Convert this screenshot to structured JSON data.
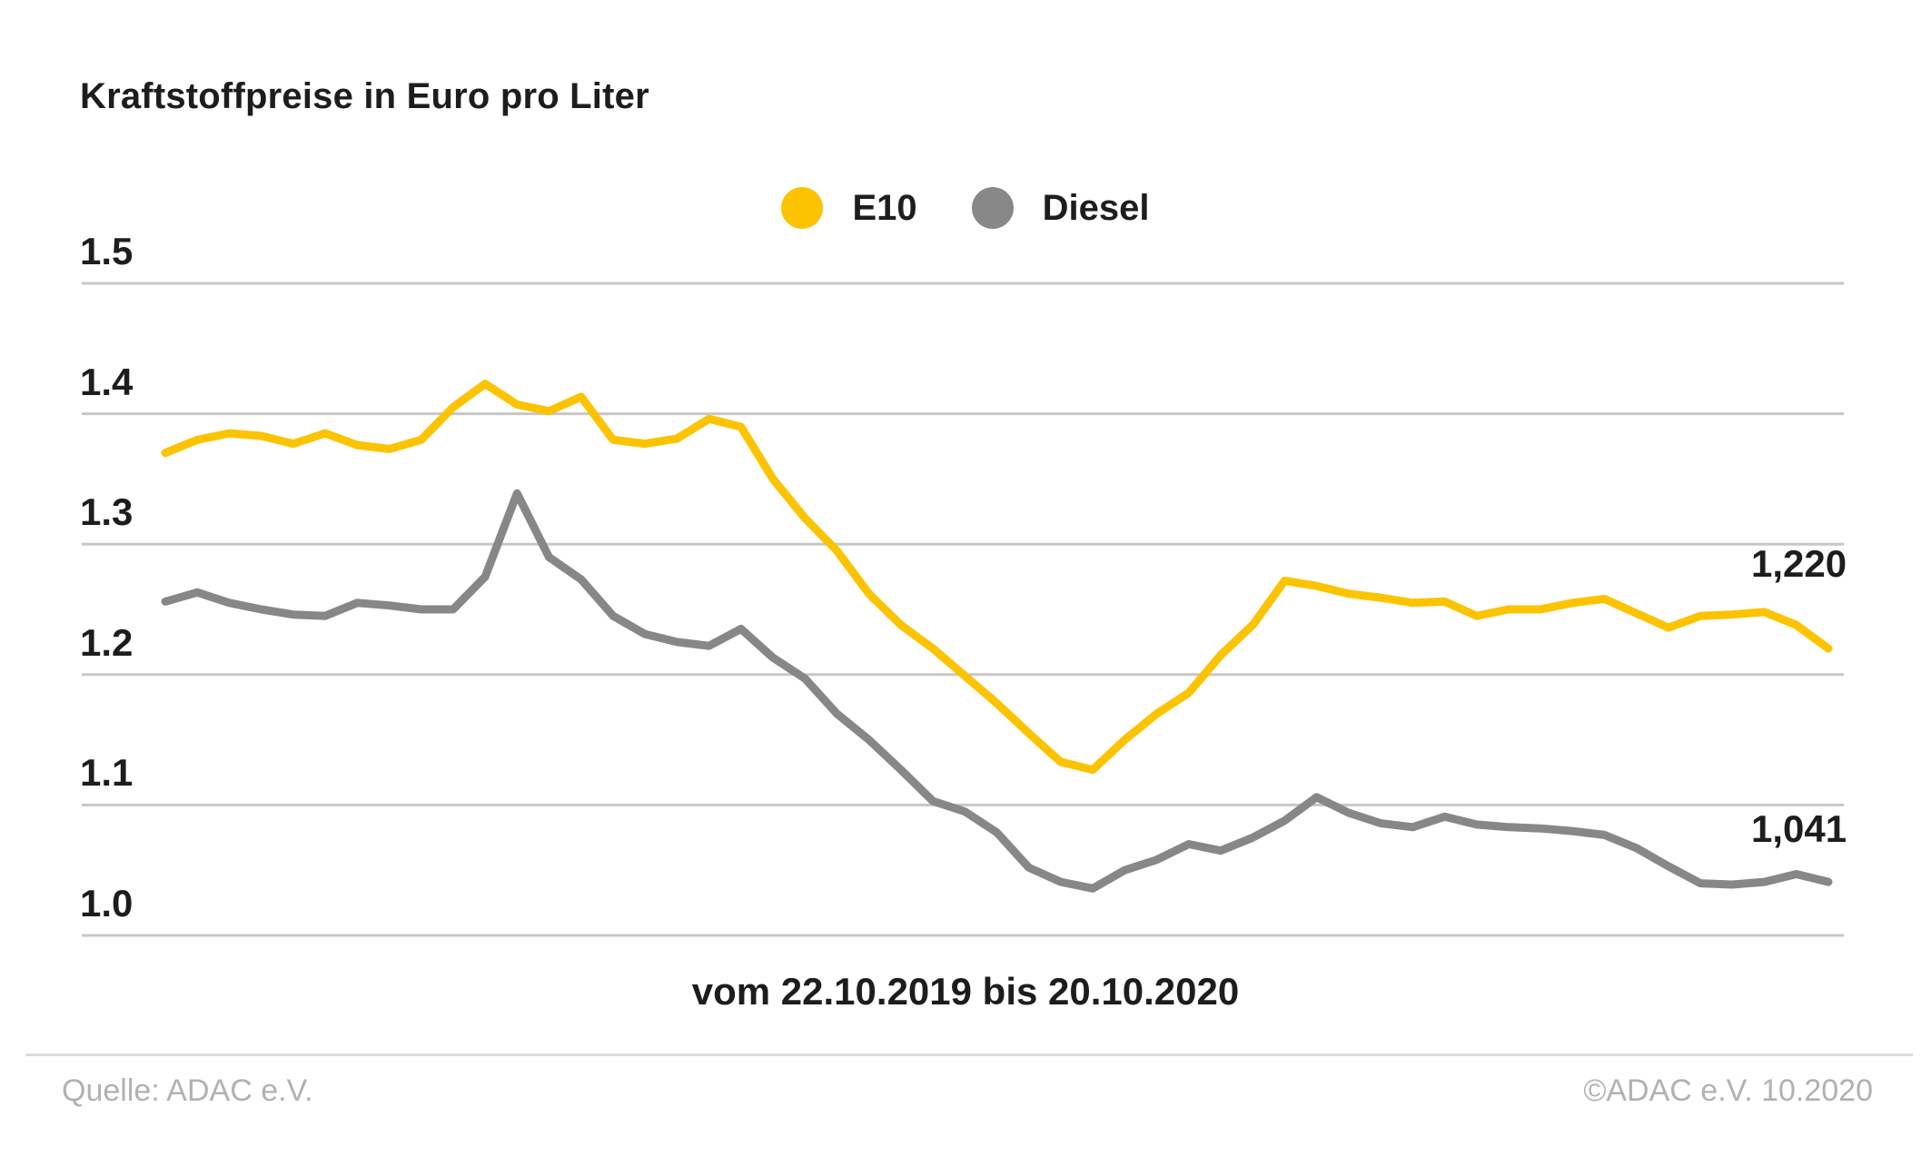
{
  "title": "Kraftstoffpreise in Euro pro Liter",
  "legend": {
    "items": [
      {
        "label": "E10",
        "color": "#FCC300"
      },
      {
        "label": "Diesel",
        "color": "#878787"
      }
    ]
  },
  "y_axis_labels": [
    "1.5",
    "1.4",
    "1.3",
    "1.2",
    "1.1",
    "1.0"
  ],
  "end_labels": {
    "e10": "1,220",
    "diesel": "1,041"
  },
  "caption": "vom 22.10.2019 bis 20.10.2020",
  "footer": {
    "source": "Quelle: ADAC e.V.",
    "copyright": "©ADAC e.V. 10.2020"
  },
  "colors": {
    "e10_line": "#FCC300",
    "diesel_line": "#878787",
    "gridline": "#c7c7c7",
    "text": "#1d1d1b",
    "footer_text": "#b1b1b1"
  },
  "chart_data": {
    "type": "line",
    "title": "Kraftstoffpreise in Euro pro Liter",
    "xlabel": "vom 22.10.2019 bis 20.10.2020",
    "ylabel": "Euro pro Liter",
    "ylim": [
      1.0,
      1.5
    ],
    "yticks": [
      1.5,
      1.4,
      1.3,
      1.2,
      1.1,
      1.0
    ],
    "grid": true,
    "legend_position": "top-center",
    "x": [
      "22.10.2019",
      "29.10.2019",
      "05.11.2019",
      "12.11.2019",
      "19.11.2019",
      "26.11.2019",
      "03.12.2019",
      "10.12.2019",
      "17.12.2019",
      "24.12.2019",
      "31.12.2019",
      "07.01.2020",
      "14.01.2020",
      "21.01.2020",
      "28.01.2020",
      "04.02.2020",
      "11.02.2020",
      "18.02.2020",
      "25.02.2020",
      "03.03.2020",
      "10.03.2020",
      "17.03.2020",
      "24.03.2020",
      "31.03.2020",
      "07.04.2020",
      "14.04.2020",
      "21.04.2020",
      "28.04.2020",
      "05.05.2020",
      "12.05.2020",
      "19.05.2020",
      "26.05.2020",
      "02.06.2020",
      "09.06.2020",
      "16.06.2020",
      "23.06.2020",
      "30.06.2020",
      "07.07.2020",
      "14.07.2020",
      "21.07.2020",
      "28.07.2020",
      "04.08.2020",
      "11.08.2020",
      "18.08.2020",
      "25.08.2020",
      "01.09.2020",
      "08.09.2020",
      "15.09.2020",
      "22.09.2020",
      "29.09.2020",
      "06.10.2020",
      "13.10.2020",
      "20.10.2020"
    ],
    "series": [
      {
        "name": "E10",
        "color": "#FCC300",
        "last_value_label": "1,220",
        "values": [
          1.37,
          1.38,
          1.385,
          1.383,
          1.377,
          1.385,
          1.376,
          1.373,
          1.38,
          1.405,
          1.423,
          1.407,
          1.402,
          1.413,
          1.38,
          1.377,
          1.381,
          1.396,
          1.39,
          1.35,
          1.32,
          1.295,
          1.262,
          1.238,
          1.22,
          1.199,
          1.178,
          1.155,
          1.133,
          1.127,
          1.15,
          1.17,
          1.186,
          1.215,
          1.238,
          1.272,
          1.268,
          1.262,
          1.259,
          1.255,
          1.256,
          1.245,
          1.25,
          1.25,
          1.255,
          1.258,
          1.247,
          1.236,
          1.245,
          1.246,
          1.248,
          1.238,
          1.22
        ]
      },
      {
        "name": "Diesel",
        "color": "#878787",
        "last_value_label": "1,041",
        "values": [
          1.256,
          1.263,
          1.255,
          1.25,
          1.246,
          1.245,
          1.255,
          1.253,
          1.25,
          1.25,
          1.275,
          1.339,
          1.29,
          1.273,
          1.245,
          1.231,
          1.225,
          1.222,
          1.235,
          1.213,
          1.197,
          1.17,
          1.15,
          1.127,
          1.103,
          1.095,
          1.079,
          1.052,
          1.041,
          1.036,
          1.05,
          1.058,
          1.07,
          1.065,
          1.075,
          1.088,
          1.106,
          1.094,
          1.086,
          1.083,
          1.091,
          1.085,
          1.083,
          1.082,
          1.08,
          1.077,
          1.067,
          1.053,
          1.04,
          1.039,
          1.041,
          1.047,
          1.041
        ]
      }
    ]
  }
}
